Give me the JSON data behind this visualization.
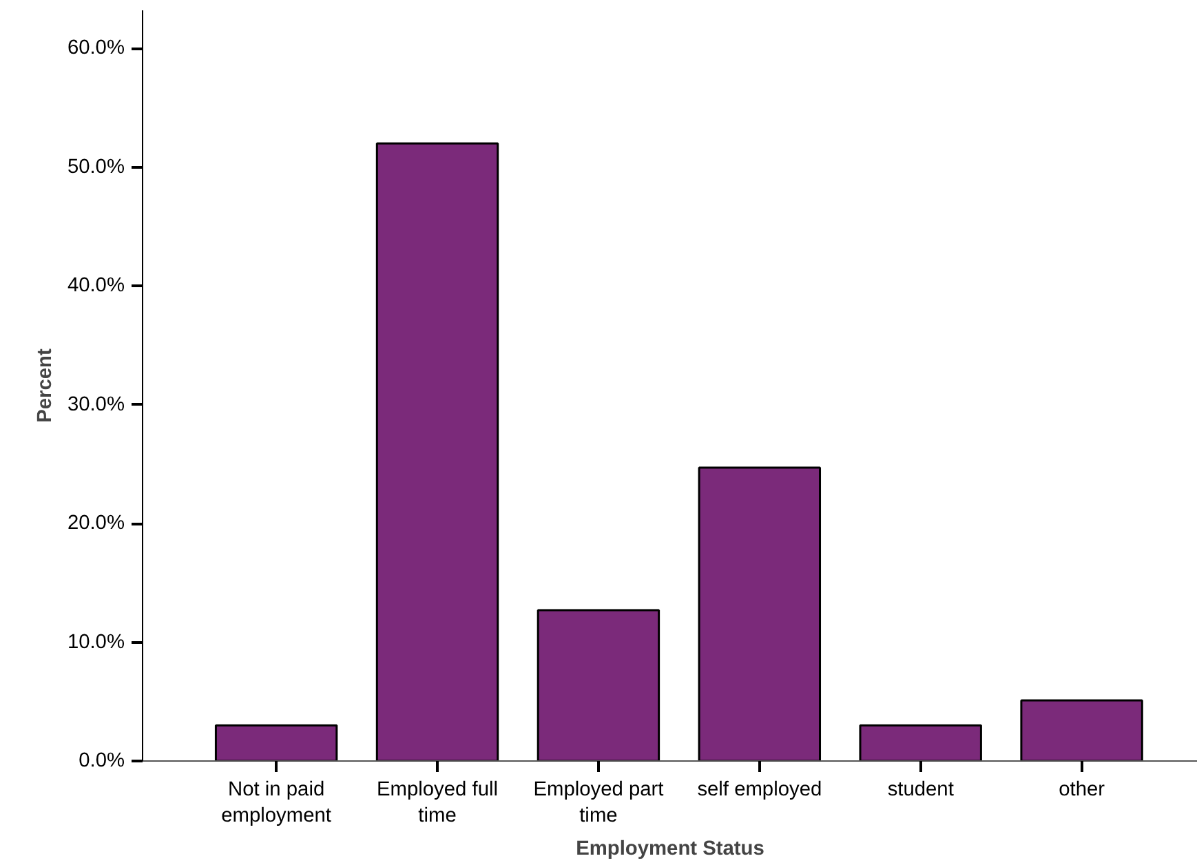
{
  "chart_data": {
    "type": "bar",
    "xlabel": "Employment Status",
    "ylabel": "Percent",
    "categories": [
      "Not in paid employment",
      "Employed full time",
      "Employed part time",
      "self employed",
      "student",
      "other"
    ],
    "values": [
      3.0,
      52.0,
      12.7,
      24.7,
      3.0,
      5.1
    ],
    "color": "#7b2a7a",
    "ylim": [
      0,
      63.2
    ],
    "yticks": [
      {
        "value": 0,
        "label": "0.0%"
      },
      {
        "value": 10,
        "label": "10.0%"
      },
      {
        "value": 20,
        "label": "20.0%"
      },
      {
        "value": 30,
        "label": "30.0%"
      },
      {
        "value": 40,
        "label": "40.0%"
      },
      {
        "value": 50,
        "label": "50.0%"
      },
      {
        "value": 60,
        "label": "60.0%"
      }
    ],
    "grid": false
  }
}
